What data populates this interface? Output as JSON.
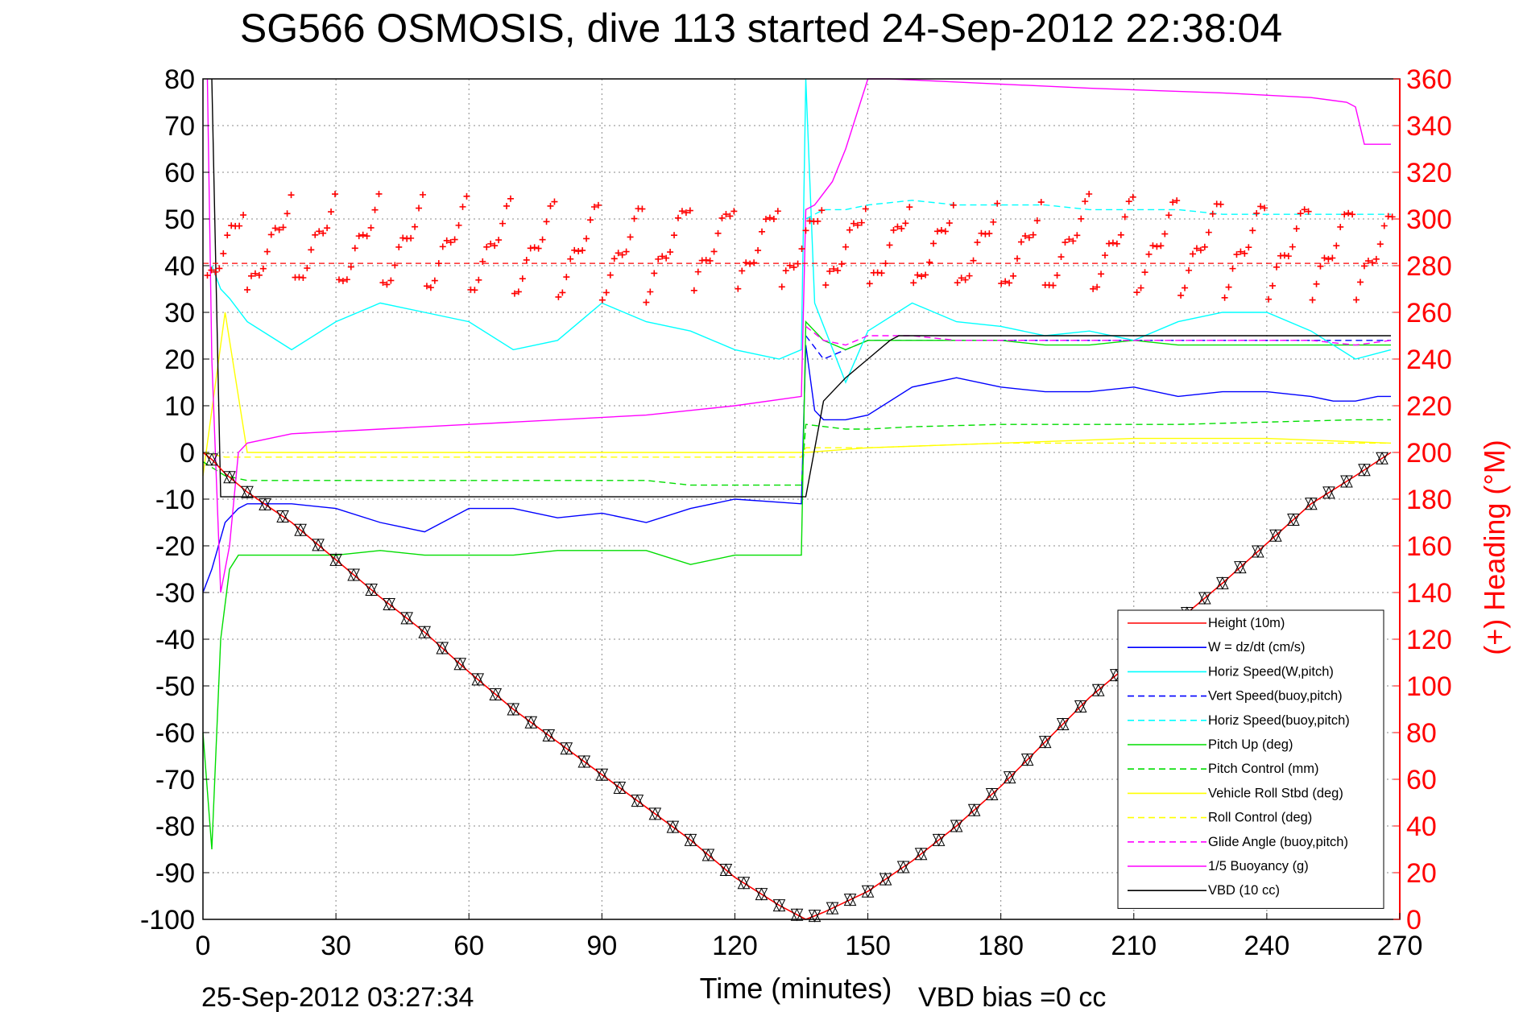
{
  "chart_data": {
    "type": "line",
    "title": "SG566 OSMOSIS, dive 113 started 24-Sep-2012 22:38:04",
    "xlabel": "Time (minutes)",
    "ylabel": "",
    "y2label": "(+) Heading (°M)",
    "xlim": [
      0,
      270
    ],
    "ylim": [
      -100,
      80
    ],
    "y2lim": [
      0,
      360
    ],
    "xticks": [
      0,
      30,
      60,
      90,
      120,
      150,
      180,
      210,
      240,
      270
    ],
    "yticks": [
      -100,
      -90,
      -80,
      -70,
      -60,
      -50,
      -40,
      -30,
      -20,
      -10,
      0,
      10,
      20,
      30,
      40,
      50,
      60,
      70,
      80
    ],
    "y2ticks": [
      0,
      20,
      40,
      60,
      80,
      100,
      120,
      140,
      160,
      180,
      200,
      220,
      240,
      260,
      280,
      300,
      320,
      340,
      360
    ],
    "grid": true,
    "legend_position": "bottom-right",
    "footer_left": "25-Sep-2012 03:27:34",
    "footer_right": "VBD bias =0 cc",
    "heading_reference": 281,
    "series": [
      {
        "name": "Height (10m)",
        "color": "#ff0000",
        "dash": "solid",
        "x": [
          0,
          2,
          5,
          10,
          20,
          30,
          40,
          50,
          60,
          70,
          80,
          90,
          100,
          110,
          120,
          130,
          136,
          140,
          150,
          160,
          170,
          180,
          190,
          200,
          210,
          220,
          230,
          240,
          250,
          260,
          268
        ],
        "y": [
          0,
          -1.5,
          -4.5,
          -8.5,
          -15,
          -23,
          -31,
          -38.5,
          -47,
          -55,
          -62,
          -69,
          -76,
          -83,
          -91,
          -97,
          -100,
          -98.5,
          -94,
          -87.5,
          -80,
          -71.5,
          -62,
          -52.5,
          -44.5,
          -36,
          -28,
          -19.5,
          -11,
          -5,
          0
        ]
      },
      {
        "name": "W = dz/dt (cm/s)",
        "color": "#0000ff",
        "dash": "solid",
        "x": [
          0,
          2,
          5,
          8,
          10,
          20,
          30,
          40,
          50,
          60,
          70,
          80,
          90,
          100,
          110,
          120,
          135,
          136,
          138,
          140,
          145,
          150,
          160,
          170,
          180,
          190,
          200,
          210,
          220,
          230,
          240,
          250,
          255,
          260,
          265,
          268
        ],
        "y": [
          -30,
          -25,
          -15,
          -12,
          -11,
          -11,
          -12,
          -15,
          -17,
          -12,
          -12,
          -14,
          -13,
          -15,
          -12,
          -10,
          -11,
          23,
          9,
          7,
          7,
          8,
          14,
          16,
          14,
          13,
          13,
          14,
          12,
          13,
          13,
          12,
          11,
          11,
          12,
          12
        ]
      },
      {
        "name": "Horiz Speed(W,pitch)",
        "color": "#00ffff",
        "dash": "solid",
        "x": [
          2,
          4,
          6,
          10,
          15,
          20,
          30,
          40,
          50,
          60,
          70,
          80,
          90,
          100,
          110,
          120,
          130,
          135,
          136,
          138,
          145,
          150,
          160,
          170,
          180,
          190,
          200,
          210,
          220,
          230,
          240,
          250,
          260,
          268
        ],
        "y": [
          40,
          35,
          33,
          28,
          25,
          22,
          28,
          32,
          30,
          28,
          22,
          24,
          32,
          28,
          26,
          22,
          20,
          22,
          80,
          32,
          15,
          26,
          32,
          28,
          27,
          25,
          26,
          24,
          28,
          30,
          30,
          26,
          20,
          22
        ]
      },
      {
        "name": "Vert Speed(buoy,pitch)",
        "color": "#0000ff",
        "dash": "dashed",
        "x": [
          136,
          140,
          145,
          150,
          160,
          170,
          180,
          190,
          200,
          210,
          220,
          230,
          240,
          250,
          260,
          268
        ],
        "y": [
          25,
          20,
          22,
          24,
          24,
          24,
          24,
          24,
          24,
          24,
          24,
          24,
          24,
          24,
          24,
          24
        ]
      },
      {
        "name": "Horiz Speed(buoy,pitch)",
        "color": "#00ffff",
        "dash": "dashed",
        "x": [
          136,
          140,
          145,
          150,
          160,
          170,
          180,
          190,
          200,
          210,
          220,
          230,
          240,
          250,
          260,
          268
        ],
        "y": [
          50,
          52,
          52,
          53,
          54,
          53,
          53,
          53,
          52,
          52,
          52,
          51,
          51,
          51,
          51,
          51
        ]
      },
      {
        "name": "Pitch Up (deg)",
        "color": "#00dd00",
        "dash": "solid",
        "x": [
          0,
          2,
          4,
          6,
          8,
          10,
          20,
          30,
          40,
          50,
          60,
          70,
          80,
          90,
          100,
          110,
          120,
          130,
          135,
          136,
          140,
          145,
          150,
          160,
          170,
          180,
          190,
          200,
          210,
          220,
          230,
          240,
          250,
          260,
          268
        ],
        "y": [
          -60,
          -85,
          -40,
          -25,
          -22,
          -22,
          -22,
          -22,
          -21,
          -22,
          -22,
          -22,
          -21,
          -21,
          -21,
          -24,
          -22,
          -22,
          -22,
          28,
          24,
          22,
          24,
          24,
          24,
          24,
          23,
          23,
          24,
          23,
          23,
          23,
          23,
          23,
          23
        ]
      },
      {
        "name": "Pitch Control (mm)",
        "color": "#00dd00",
        "dash": "dashed",
        "x": [
          0,
          5,
          10,
          20,
          30,
          40,
          60,
          80,
          100,
          110,
          120,
          135,
          136,
          145,
          150,
          160,
          180,
          200,
          220,
          240,
          260,
          268
        ],
        "y": [
          -2,
          -5,
          -6,
          -6,
          -6,
          -6,
          -6,
          -6,
          -6,
          -7,
          -7,
          -7,
          6,
          5,
          5,
          5.5,
          6,
          6,
          6,
          6.5,
          7,
          7
        ]
      },
      {
        "name": "Vehicle Roll Stbd (deg)",
        "color": "#ffff00",
        "dash": "solid",
        "x": [
          0,
          5,
          10,
          30,
          60,
          90,
          120,
          135,
          136,
          150,
          180,
          210,
          240,
          268
        ],
        "y": [
          -5,
          30,
          0,
          0,
          0,
          0,
          0,
          0,
          0,
          1,
          2,
          3,
          3,
          2
        ]
      },
      {
        "name": "Roll Control (deg)",
        "color": "#ffff00",
        "dash": "dashed",
        "x": [
          0,
          5,
          10,
          30,
          60,
          90,
          120,
          135,
          136,
          150,
          180,
          210,
          240,
          268
        ],
        "y": [
          0,
          -1,
          -1,
          -1,
          -1,
          -1,
          -1,
          -1,
          1,
          1,
          2,
          2,
          2,
          2
        ]
      },
      {
        "name": "Glide Angle (buoy,pitch)",
        "color": "#ff00ff",
        "dash": "dashed",
        "x": [
          136,
          140,
          145,
          150,
          160,
          170,
          180,
          190,
          200,
          210,
          220,
          230,
          240,
          250,
          260,
          268
        ],
        "y": [
          27,
          24,
          23,
          25,
          25,
          24,
          24,
          24,
          24,
          24,
          24,
          24,
          24,
          24,
          23,
          24
        ]
      },
      {
        "name": "1/5 Buoyancy (g)",
        "color": "#ff00ff",
        "dash": "solid",
        "x": [
          1,
          2,
          4,
          6,
          8,
          10,
          20,
          40,
          60,
          80,
          100,
          120,
          135,
          136,
          138,
          142,
          145,
          150,
          155,
          200,
          230,
          250,
          258,
          260,
          262,
          268
        ],
        "y": [
          80,
          20,
          -30,
          -20,
          0,
          2,
          4,
          5,
          6,
          7,
          8,
          10,
          12,
          52,
          53,
          58,
          65,
          80,
          80,
          78,
          77,
          76,
          75,
          74,
          66,
          66
        ]
      },
      {
        "name": "VBD (10 cc)",
        "color": "#000000",
        "dash": "solid",
        "x": [
          2,
          4,
          136,
          140,
          145,
          150,
          155,
          157,
          268
        ],
        "y": [
          80,
          -9.5,
          -9.5,
          11,
          16,
          20,
          24,
          25,
          25
        ]
      }
    ]
  }
}
